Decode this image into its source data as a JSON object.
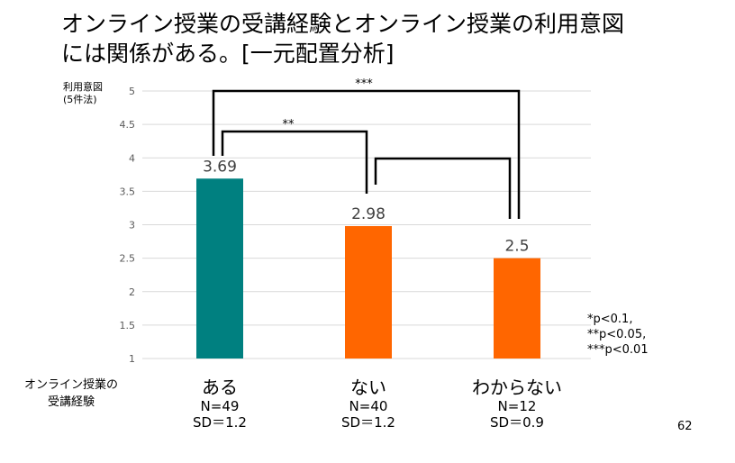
{
  "title": {
    "line1": "オンライン授業の受講経験とオンライン授業の利用意図",
    "line2": "には関係がある。[一元配置分析]"
  },
  "chart_data": {
    "type": "bar",
    "ylabel_line1": "利用意図",
    "ylabel_line2": "(5件法)",
    "xlabel_line1": "オンライン授業の",
    "xlabel_line2": "受講経験",
    "ylim": [
      1,
      5
    ],
    "yticks": [
      "1",
      "1.5",
      "2",
      "2.5",
      "3",
      "3.5",
      "4",
      "4.5",
      "5"
    ],
    "grid": true,
    "categories": [
      {
        "name": "ある",
        "value": 3.69,
        "label": "3.69",
        "n": "N=49",
        "sd": "SD＝1.2",
        "color": "#008080"
      },
      {
        "name": "ない",
        "value": 2.98,
        "label": "2.98",
        "n": "N=40",
        "sd": "SD＝1.2",
        "color": "#FF6600"
      },
      {
        "name": "わからない",
        "value": 2.5,
        "label": "2.5",
        "n": "N=12",
        "sd": "SD＝0.9",
        "color": "#FF6600"
      }
    ],
    "significance": [
      {
        "from": "ある",
        "to": "わからない",
        "label": "***"
      },
      {
        "from": "ある",
        "to": "ない",
        "label": "**"
      },
      {
        "from": "ない",
        "to": "わからない",
        "label": ""
      }
    ],
    "notes": [
      "*p<0.1,",
      "**p<0.05,",
      "***p<0.01"
    ]
  },
  "page_number": "62"
}
